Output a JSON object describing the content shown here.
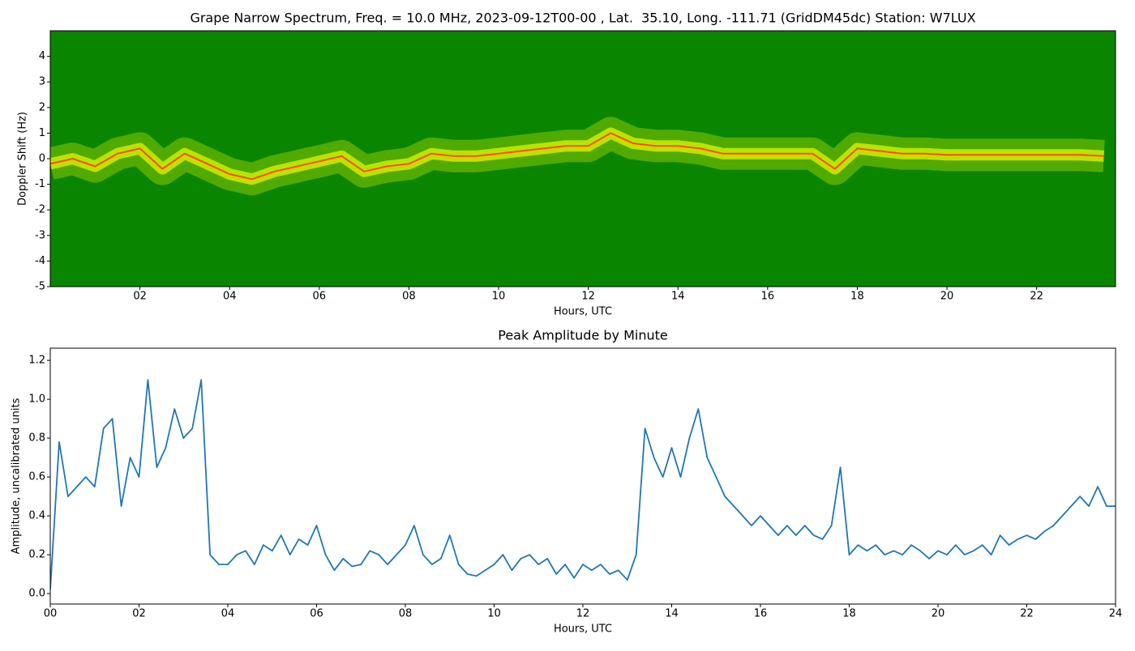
{
  "chart_data": [
    {
      "type": "spectrogram",
      "title": "Grape Narrow Spectrum, Freq. = 10.0 MHz, 2023-09-12T00-00 , Lat.  35.10, Long. -111.71 (GridDM45dc) Station: W7LUX",
      "xlabel": "Hours, UTC",
      "ylabel": "Doppler Shift (Hz)",
      "xlim": [
        0,
        23.76
      ],
      "ylim": [
        -5,
        5
      ],
      "xticks": [
        {
          "value": 2,
          "label": "02"
        },
        {
          "value": 4,
          "label": "04"
        },
        {
          "value": 6,
          "label": "06"
        },
        {
          "value": 8,
          "label": "08"
        },
        {
          "value": 10,
          "label": "10"
        },
        {
          "value": 12,
          "label": "12"
        },
        {
          "value": 14,
          "label": "14"
        },
        {
          "value": 16,
          "label": "16"
        },
        {
          "value": 18,
          "label": "18"
        },
        {
          "value": 20,
          "label": "20"
        },
        {
          "value": 22,
          "label": "22"
        }
      ],
      "yticks": [
        -5,
        -4,
        -3,
        -2,
        -1,
        0,
        1,
        2,
        3,
        4
      ],
      "background_color": "#0a8500",
      "spread_color": "#d8f000",
      "color": "#ff4a10",
      "x": [
        0,
        0.5,
        1,
        1.5,
        2,
        2.5,
        3,
        3.5,
        4,
        4.5,
        5,
        5.5,
        6,
        6.5,
        7,
        7.5,
        8,
        8.5,
        9,
        9.5,
        10,
        10.5,
        11,
        11.5,
        12,
        12.5,
        13,
        13.5,
        14,
        14.5,
        15,
        15.5,
        16,
        16.5,
        17,
        17.5,
        18,
        18.5,
        19,
        19.5,
        20,
        20.5,
        21,
        21.5,
        22,
        22.5,
        23,
        23.5
      ],
      "values": [
        -0.2,
        0.0,
        -0.3,
        0.2,
        0.4,
        -0.4,
        0.2,
        -0.2,
        -0.6,
        -0.8,
        -0.5,
        -0.3,
        -0.1,
        0.1,
        -0.5,
        -0.3,
        -0.2,
        0.2,
        0.1,
        0.1,
        0.2,
        0.3,
        0.4,
        0.5,
        0.5,
        1.0,
        0.6,
        0.5,
        0.5,
        0.4,
        0.2,
        0.2,
        0.2,
        0.2,
        0.2,
        -0.4,
        0.4,
        0.3,
        0.2,
        0.2,
        0.15,
        0.15,
        0.15,
        0.15,
        0.15,
        0.15,
        0.15,
        0.1
      ]
    },
    {
      "type": "line",
      "title": "Peak Amplitude by Minute",
      "xlabel": "Hours, UTC",
      "ylabel": "Amplitude, uncalibrated units",
      "xlim": [
        0,
        24
      ],
      "ylim": [
        -0.054,
        1.263
      ],
      "xticks": [
        {
          "value": 0,
          "label": "00"
        },
        {
          "value": 2,
          "label": "02"
        },
        {
          "value": 4,
          "label": "04"
        },
        {
          "value": 6,
          "label": "06"
        },
        {
          "value": 8,
          "label": "08"
        },
        {
          "value": 10,
          "label": "10"
        },
        {
          "value": 12,
          "label": "12"
        },
        {
          "value": 14,
          "label": "14"
        },
        {
          "value": 16,
          "label": "16"
        },
        {
          "value": 18,
          "label": "18"
        },
        {
          "value": 20,
          "label": "20"
        },
        {
          "value": 22,
          "label": "22"
        },
        {
          "value": 24,
          "label": "24"
        }
      ],
      "yticks": [
        {
          "value": 0,
          "label": "0.0"
        },
        0.2,
        0.4,
        0.6,
        0.8,
        {
          "value": 1,
          "label": "1.0"
        },
        1.2
      ],
      "color": "#1f77b4",
      "x": [
        0,
        0.2,
        0.4,
        0.6,
        0.8,
        1,
        1.2,
        1.4,
        1.6,
        1.8,
        2,
        2.2,
        2.4,
        2.6,
        2.8,
        3,
        3.2,
        3.4,
        3.6,
        3.8,
        4,
        4.2,
        4.4,
        4.6,
        4.8,
        5,
        5.2,
        5.4,
        5.6,
        5.8,
        6,
        6.2,
        6.4,
        6.6,
        6.8,
        7,
        7.2,
        7.4,
        7.6,
        7.8,
        8,
        8.2,
        8.4,
        8.6,
        8.8,
        9,
        9.2,
        9.4,
        9.6,
        9.8,
        10,
        10.2,
        10.4,
        10.6,
        10.8,
        11,
        11.2,
        11.4,
        11.6,
        11.8,
        12,
        12.2,
        12.4,
        12.6,
        12.8,
        13,
        13.2,
        13.4,
        13.6,
        13.8,
        14,
        14.2,
        14.4,
        14.6,
        14.8,
        15,
        15.2,
        15.4,
        15.6,
        15.8,
        16,
        16.2,
        16.4,
        16.6,
        16.8,
        17,
        17.2,
        17.4,
        17.6,
        17.8,
        18,
        18.2,
        18.4,
        18.6,
        18.8,
        19,
        19.2,
        19.4,
        19.6,
        19.8,
        20,
        20.2,
        20.4,
        20.6,
        20.8,
        21,
        21.2,
        21.4,
        21.6,
        21.8,
        22,
        22.2,
        22.4,
        22.6,
        22.8,
        23,
        23.2,
        23.4,
        23.6,
        23.8,
        24
      ],
      "values": [
        0.02,
        0.78,
        0.5,
        0.55,
        0.6,
        0.55,
        0.85,
        0.9,
        0.45,
        0.7,
        0.6,
        1.1,
        0.65,
        0.75,
        0.95,
        0.8,
        0.85,
        1.1,
        0.2,
        0.15,
        0.15,
        0.2,
        0.22,
        0.15,
        0.25,
        0.22,
        0.3,
        0.2,
        0.28,
        0.25,
        0.35,
        0.2,
        0.12,
        0.18,
        0.14,
        0.15,
        0.22,
        0.2,
        0.15,
        0.2,
        0.25,
        0.35,
        0.2,
        0.15,
        0.18,
        0.3,
        0.15,
        0.1,
        0.09,
        0.12,
        0.15,
        0.2,
        0.12,
        0.18,
        0.2,
        0.15,
        0.18,
        0.1,
        0.15,
        0.08,
        0.15,
        0.12,
        0.15,
        0.1,
        0.12,
        0.07,
        0.2,
        0.85,
        0.7,
        0.6,
        0.75,
        0.6,
        0.8,
        0.95,
        0.7,
        0.6,
        0.5,
        0.45,
        0.4,
        0.35,
        0.4,
        0.35,
        0.3,
        0.35,
        0.3,
        0.35,
        0.3,
        0.28,
        0.35,
        0.65,
        0.2,
        0.25,
        0.22,
        0.25,
        0.2,
        0.22,
        0.2,
        0.25,
        0.22,
        0.18,
        0.22,
        0.2,
        0.25,
        0.2,
        0.22,
        0.25,
        0.2,
        0.3,
        0.25,
        0.28,
        0.3,
        0.28,
        0.32,
        0.35,
        0.4,
        0.45,
        0.5,
        0.45,
        0.55,
        0.45,
        0.45
      ]
    }
  ]
}
